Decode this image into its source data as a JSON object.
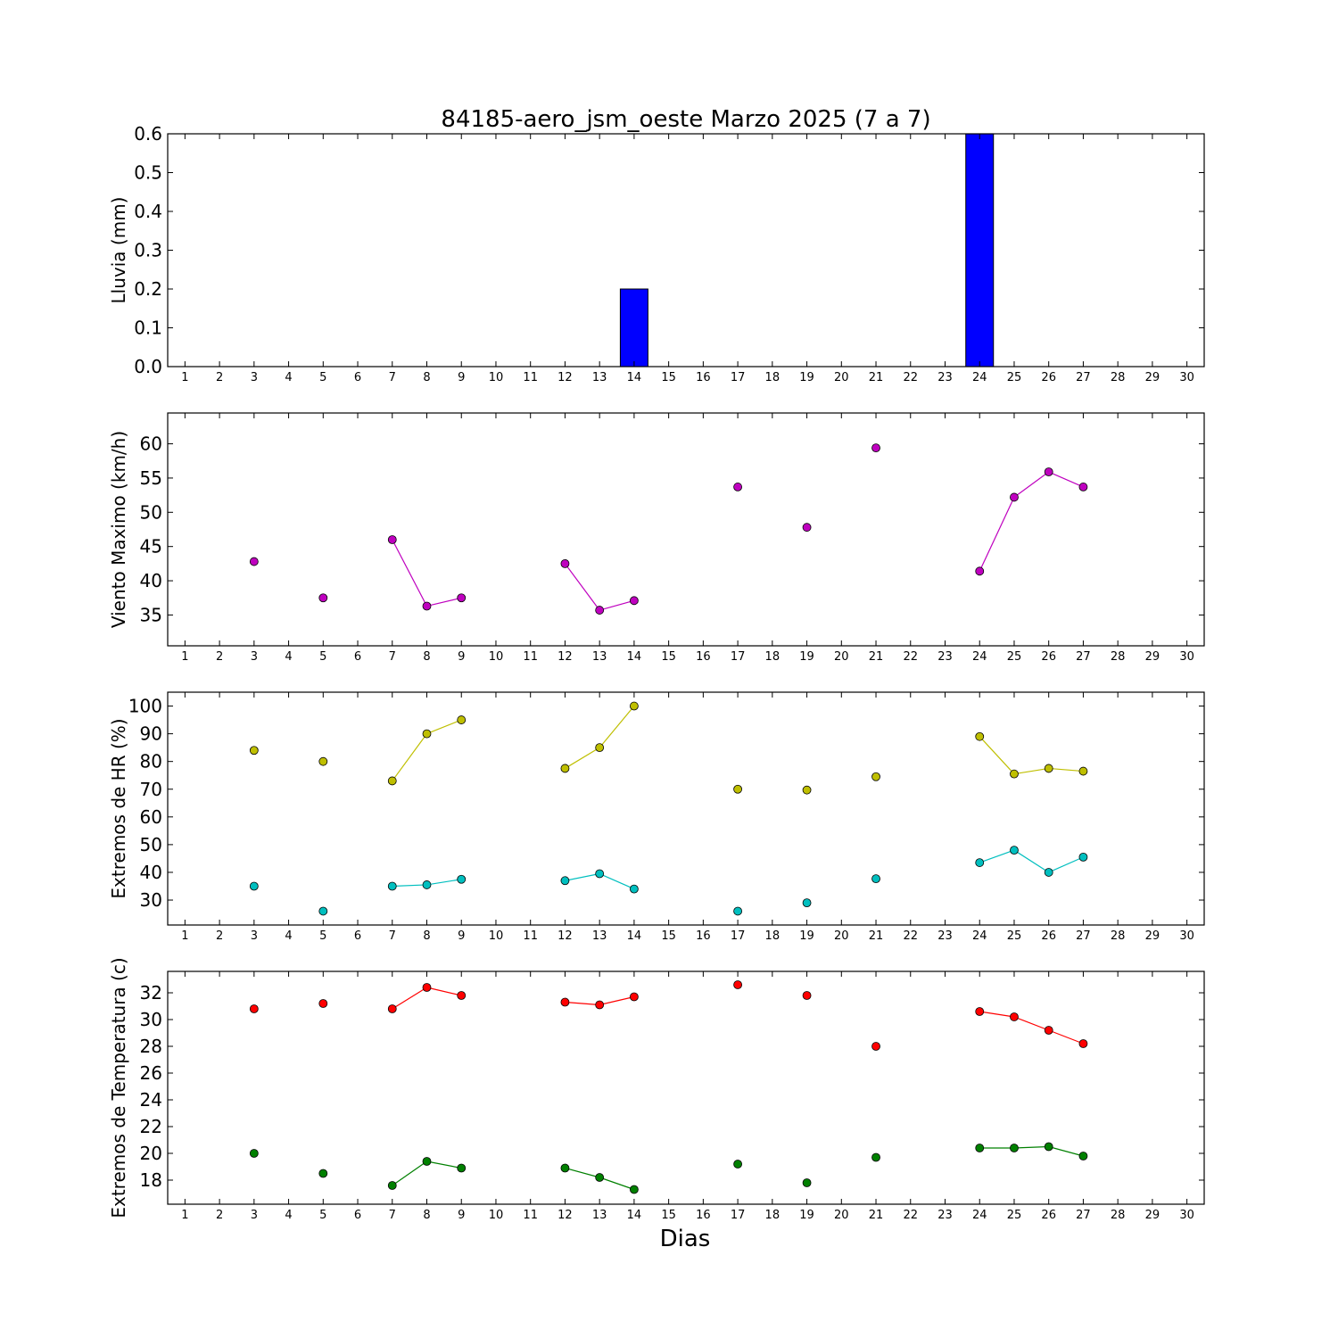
{
  "chart_data": [
    {
      "type": "bar",
      "title": "84185-aero_jsm_oeste Marzo 2025  (7 a 7)",
      "ylabel": "Lluvia (mm)",
      "ylim": [
        0,
        0.6
      ],
      "yticks": [
        0.0,
        0.1,
        0.2,
        0.3,
        0.4,
        0.5,
        0.6
      ],
      "ytick_labels": [
        "0.0",
        "0.1",
        "0.2",
        "0.3",
        "0.4",
        "0.5",
        "0.6"
      ],
      "xlim": [
        0.5,
        30.5
      ],
      "x": [
        3,
        5,
        7,
        8,
        9,
        12,
        13,
        14,
        17,
        19,
        21,
        24,
        25,
        26,
        27
      ],
      "values": [
        0,
        0,
        0,
        0,
        0,
        0,
        0,
        0.2,
        0,
        0,
        0,
        0.6,
        0,
        0,
        0
      ],
      "color": "#0000ff"
    },
    {
      "type": "line",
      "ylabel": "Viento Maximo (km/h)",
      "ylim": [
        30.5,
        64.5
      ],
      "yticks": [
        35,
        40,
        45,
        50,
        55,
        60
      ],
      "xlim": [
        0.5,
        30.5
      ],
      "series": [
        {
          "color": "#bf00bf",
          "x": [
            3,
            5,
            7,
            8,
            9,
            12,
            13,
            14,
            17,
            19,
            21,
            24,
            25,
            26,
            27
          ],
          "values": [
            42.8,
            37.5,
            46.0,
            36.3,
            37.5,
            42.5,
            35.7,
            37.1,
            53.7,
            47.8,
            59.4,
            41.4,
            52.2,
            55.9,
            53.7
          ]
        }
      ]
    },
    {
      "type": "line",
      "ylabel": "Extremos de HR (%)",
      "ylim": [
        21,
        105
      ],
      "yticks": [
        30,
        40,
        50,
        60,
        70,
        80,
        90,
        100
      ],
      "xlim": [
        0.5,
        30.5
      ],
      "series": [
        {
          "color": "#bfbf00",
          "x": [
            3,
            5,
            7,
            8,
            9,
            12,
            13,
            14,
            17,
            19,
            21,
            24,
            25,
            26,
            27
          ],
          "values": [
            84,
            80,
            73,
            90,
            95,
            77.5,
            85,
            100,
            70,
            69.7,
            74.5,
            89,
            75.5,
            77.5,
            76.5
          ]
        },
        {
          "color": "#00bfbf",
          "x": [
            3,
            5,
            7,
            8,
            9,
            12,
            13,
            14,
            17,
            19,
            21,
            24,
            25,
            26,
            27
          ],
          "values": [
            35,
            26,
            35,
            35.5,
            37.5,
            37,
            39.5,
            34,
            26,
            29,
            37.7,
            43.5,
            48,
            40,
            45.5
          ]
        }
      ]
    },
    {
      "type": "line",
      "ylabel": "Extremos de Temperatura (c)",
      "xlabel": "Dias",
      "ylim": [
        16.2,
        33.6
      ],
      "yticks": [
        18,
        20,
        22,
        24,
        26,
        28,
        30,
        32
      ],
      "xlim": [
        0.5,
        30.5
      ],
      "series": [
        {
          "color": "#ff0000",
          "x": [
            3,
            5,
            7,
            8,
            9,
            12,
            13,
            14,
            17,
            19,
            21,
            24,
            25,
            26,
            27
          ],
          "values": [
            30.8,
            31.2,
            30.8,
            32.4,
            31.8,
            31.3,
            31.1,
            31.7,
            32.6,
            31.8,
            28.0,
            30.6,
            30.2,
            29.2,
            28.2
          ]
        },
        {
          "color": "#008000",
          "x": [
            3,
            5,
            7,
            8,
            9,
            12,
            13,
            14,
            17,
            19,
            21,
            24,
            25,
            26,
            27
          ],
          "values": [
            20.0,
            18.5,
            17.6,
            19.4,
            18.9,
            18.9,
            18.2,
            17.3,
            19.2,
            17.8,
            19.7,
            20.4,
            20.4,
            20.5,
            19.8
          ]
        }
      ]
    }
  ],
  "x_ticks": [
    1,
    2,
    3,
    4,
    5,
    6,
    7,
    8,
    9,
    10,
    11,
    12,
    13,
    14,
    15,
    16,
    17,
    18,
    19,
    20,
    21,
    22,
    23,
    24,
    25,
    26,
    27,
    28,
    29,
    30
  ]
}
